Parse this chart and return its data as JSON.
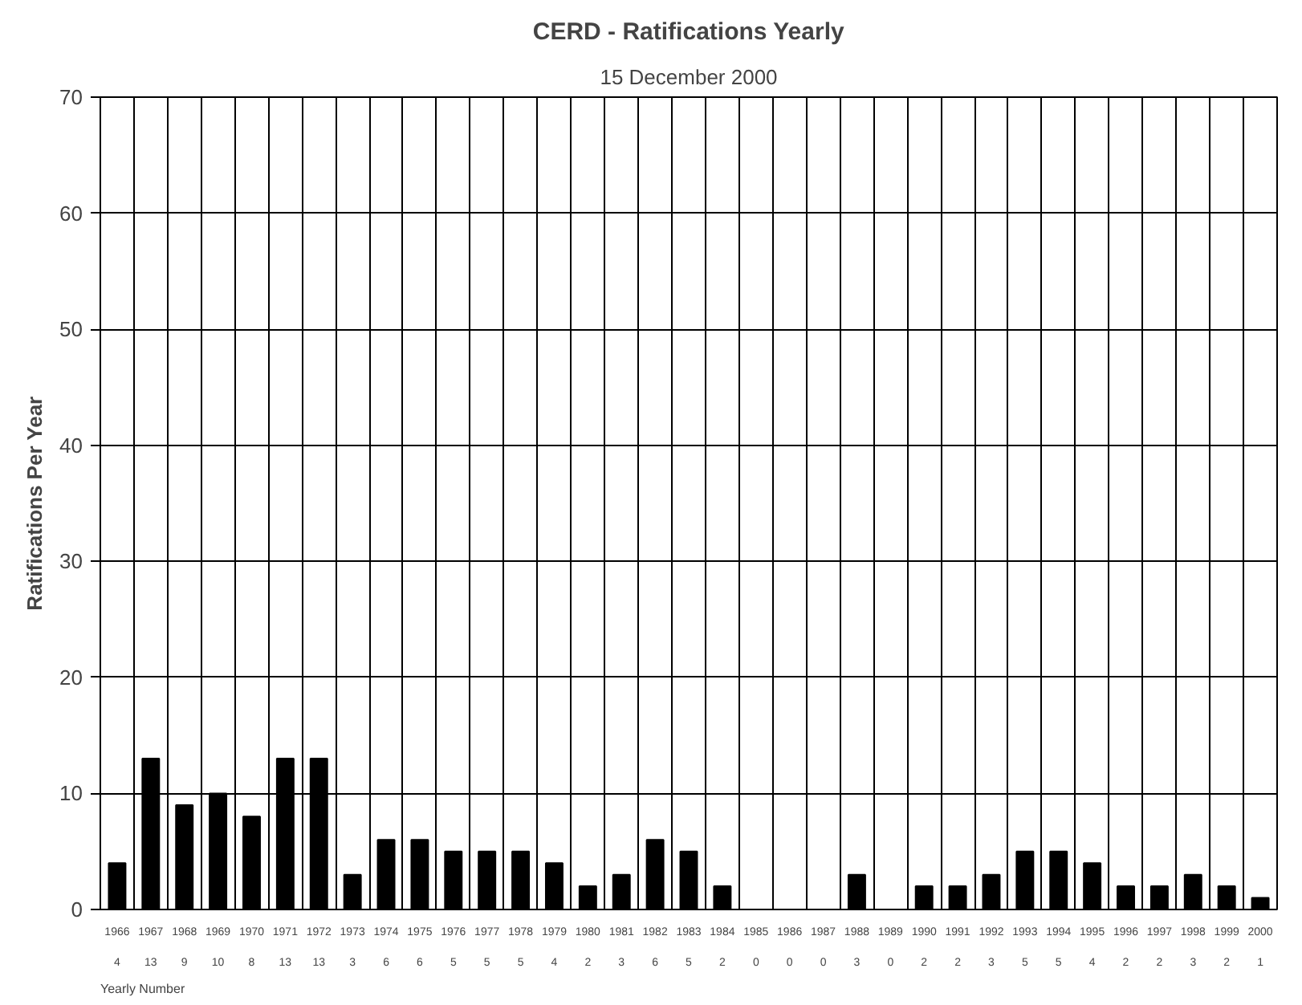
{
  "chart_data": {
    "type": "bar",
    "title": "CERD - Ratifications Yearly",
    "subtitle": "15 December 2000",
    "ylabel": "Ratifications Per Year",
    "categories": [
      "1966",
      "1967",
      "1968",
      "1969",
      "1970",
      "1971",
      "1972",
      "1973",
      "1974",
      "1975",
      "1976",
      "1977",
      "1978",
      "1979",
      "1980",
      "1981",
      "1982",
      "1983",
      "1984",
      "1985",
      "1986",
      "1987",
      "1988",
      "1989",
      "1990",
      "1991",
      "1992",
      "1993",
      "1994",
      "1995",
      "1996",
      "1997",
      "1998",
      "1999",
      "2000"
    ],
    "series": [
      {
        "name": "Yearly Number",
        "color": "#000000",
        "values": [
          4,
          13,
          9,
          10,
          8,
          13,
          13,
          3,
          6,
          6,
          5,
          5,
          5,
          4,
          2,
          3,
          6,
          5,
          2,
          0,
          0,
          0,
          3,
          0,
          2,
          2,
          3,
          5,
          5,
          4,
          2,
          2,
          3,
          2,
          1
        ]
      }
    ],
    "ylim": [
      0,
      70
    ],
    "yticks": [
      0,
      10,
      20,
      30,
      40,
      50,
      60,
      70
    ],
    "grid": true,
    "data_labels": true
  }
}
